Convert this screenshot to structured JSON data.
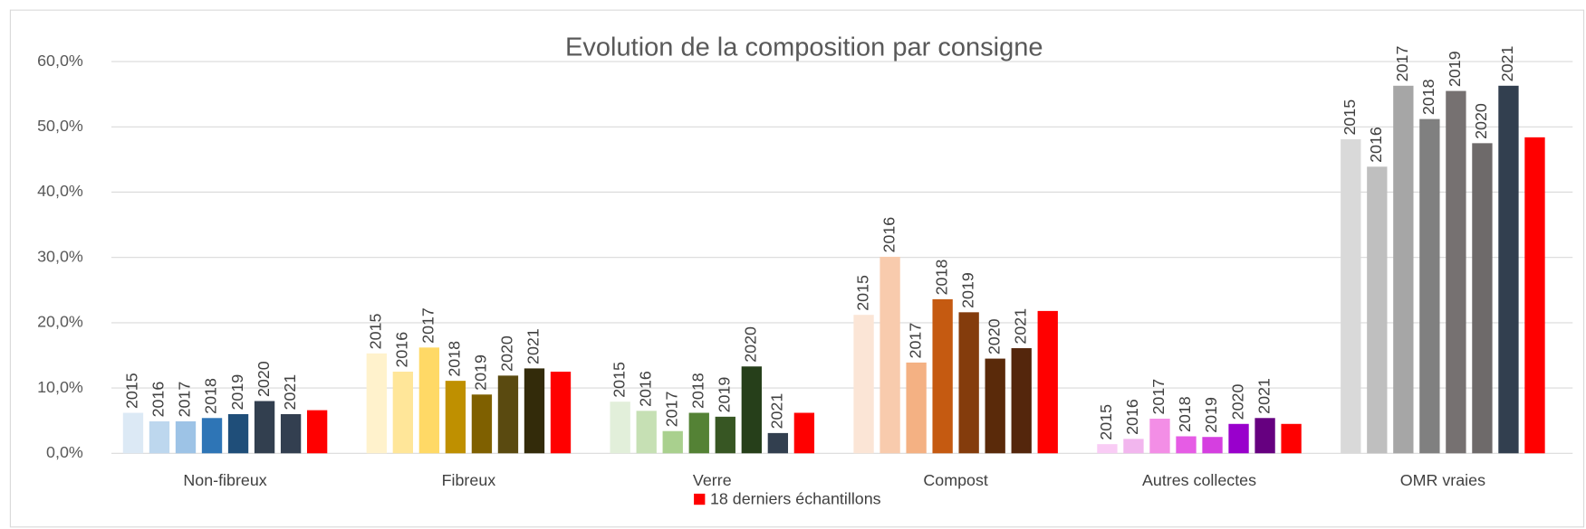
{
  "chart_data": {
    "type": "bar",
    "title": "Evolution de la composition par consigne",
    "categories": [
      "Non-fibreux",
      "Fibreux",
      "Verre",
      "Compost",
      "Autres collectes",
      "OMR vraies"
    ],
    "ylim": [
      0,
      60
    ],
    "yticks": [
      {
        "value": 0,
        "label": "0,0%"
      },
      {
        "value": 10,
        "label": "10,0%"
      },
      {
        "value": 20,
        "label": "20,0%"
      },
      {
        "value": 30,
        "label": "30,0%"
      },
      {
        "value": 40,
        "label": "40,0%"
      },
      {
        "value": 50,
        "label": "50,0%"
      },
      {
        "value": 60,
        "label": "60,0%"
      }
    ],
    "grid": true,
    "series": [
      {
        "name": "2015",
        "colors": [
          "#dce9f5",
          "#fff2cc",
          "#e2efda",
          "#fbe5d6",
          "#f9ccf5",
          "#d9d9d9"
        ],
        "values": [
          6.2,
          15.3,
          7.9,
          21.2,
          1.4,
          48.1
        ]
      },
      {
        "name": "2016",
        "colors": [
          "#bdd7ee",
          "#ffe699",
          "#c6e0b4",
          "#f8cbad",
          "#f2b6ee",
          "#bfbfbf"
        ],
        "values": [
          4.9,
          12.5,
          6.5,
          30.1,
          2.2,
          43.9
        ]
      },
      {
        "name": "2017",
        "colors": [
          "#9dc3e6",
          "#ffd966",
          "#a9d08e",
          "#f4b183",
          "#f38ee6",
          "#a6a6a6"
        ],
        "values": [
          4.9,
          16.2,
          3.4,
          13.9,
          5.3,
          56.3
        ]
      },
      {
        "name": "2018",
        "colors": [
          "#2e75b6",
          "#bf9000",
          "#548235",
          "#c55a11",
          "#e65ce5",
          "#808080"
        ],
        "values": [
          5.4,
          11.1,
          6.2,
          23.6,
          2.6,
          51.2
        ]
      },
      {
        "name": "2019",
        "colors": [
          "#1f4e79",
          "#7f6000",
          "#375623",
          "#843c0c",
          "#d53fe0",
          "#767171"
        ],
        "values": [
          6.0,
          9.0,
          5.6,
          21.6,
          2.5,
          55.5
        ]
      },
      {
        "name": "2020",
        "colors": [
          "#323f4f",
          "#5a4a10",
          "#263f1a",
          "#5a2a0a",
          "#9900cc",
          "#6e6a6a"
        ],
        "values": [
          8.0,
          11.9,
          13.3,
          14.5,
          4.5,
          47.5
        ]
      },
      {
        "name": "2021",
        "colors": [
          "#333f50",
          "#332b0a",
          "#323f4f",
          "#54260c",
          "#660080",
          "#323f4f"
        ],
        "values": [
          6.0,
          13.0,
          3.1,
          16.1,
          5.4,
          56.3
        ]
      },
      {
        "name": "18 derniers échantillons",
        "color": "#ff0000",
        "values": [
          6.6,
          12.5,
          6.2,
          21.8,
          4.5,
          48.4
        ]
      }
    ]
  }
}
